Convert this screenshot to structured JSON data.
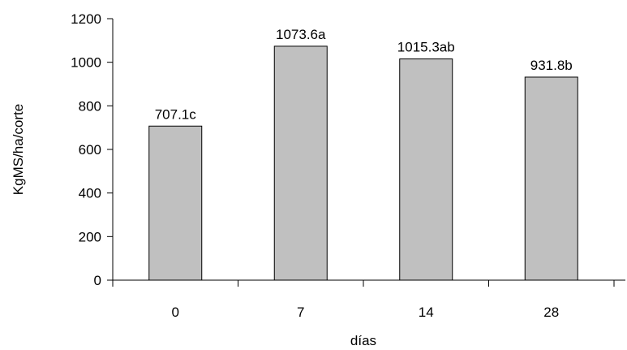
{
  "chart_data": {
    "type": "bar",
    "categories": [
      "0",
      "7",
      "14",
      "28"
    ],
    "values": [
      707.1,
      1073.6,
      1015.3,
      931.8
    ],
    "data_labels": [
      "707.1c",
      "1073.6a",
      "1015.3ab",
      "931.8b"
    ],
    "xlabel": "días",
    "ylabel": "KgMS/ha/corte",
    "ylim": [
      0,
      1200
    ],
    "yticks": [
      0,
      200,
      400,
      600,
      800,
      1000,
      1200
    ],
    "grid": false,
    "legend": "none",
    "colors": {
      "bar_fill": "#c0c0c0",
      "bar_stroke": "#000000",
      "axis": "#000000"
    }
  }
}
